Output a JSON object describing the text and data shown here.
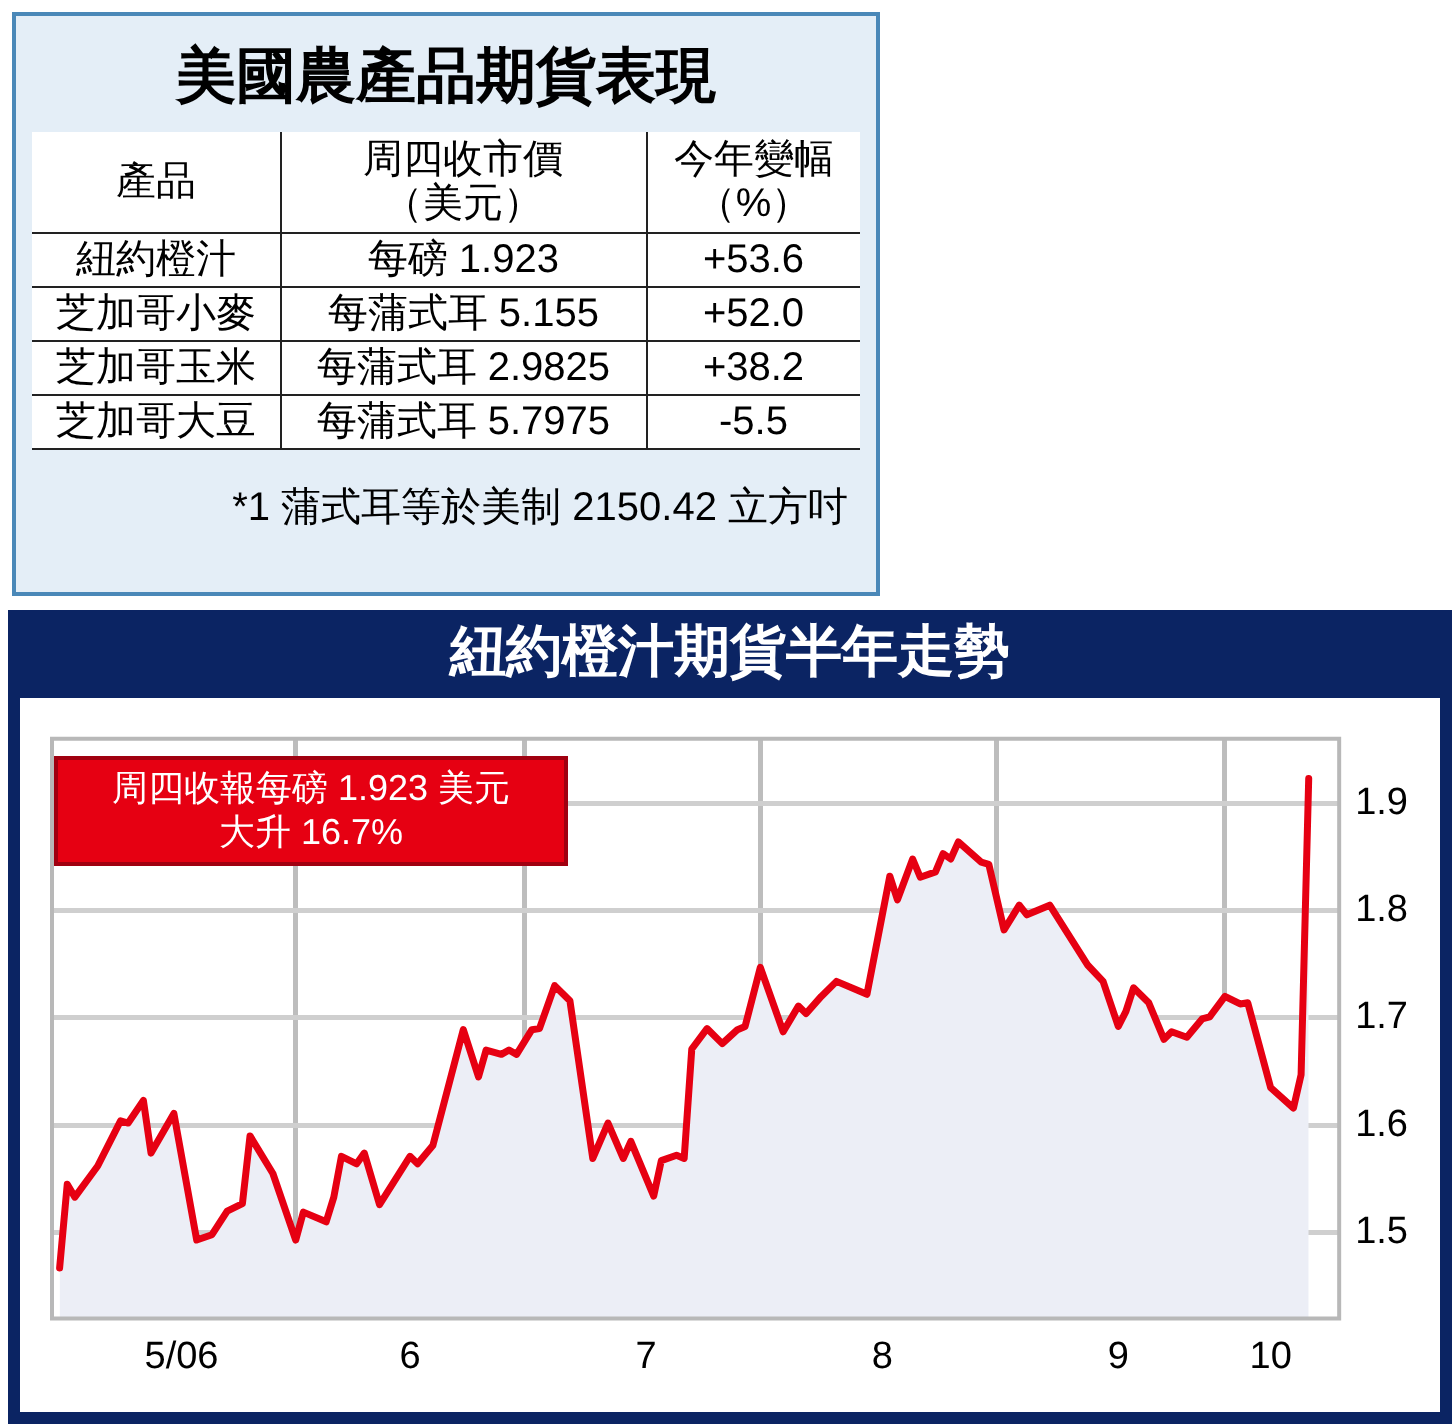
{
  "chart_data": [
    {
      "type": "other",
      "title": "美國農產品期貨表現",
      "categories": [
        "產品",
        "周四收市價（美元）",
        "今年變幅（%）"
      ],
      "cell_labels": [
        [
          "紐約橙汁",
          "每磅 1.923",
          "+53.6"
        ],
        [
          "芝加哥小麥",
          "每蒲式耳 5.155",
          "+52.0"
        ],
        [
          "芝加哥玉米",
          "每蒲式耳 2.9825",
          "+38.2"
        ],
        [
          "芝加哥大豆",
          "每蒲式耳 5.7975",
          "-5.5"
        ]
      ],
      "annotations": [
        "*1 蒲式耳等於美制 2150.42 立方吋"
      ]
    },
    {
      "type": "area",
      "title": "紐約橙汁期貨半年走勢",
      "annotations": [
        "周四收報每磅 1.923 美元",
        "大升 16.7%"
      ],
      "xlim": [
        "--04-30",
        "--10-16"
      ],
      "xticks": [
        {
          "value": "--05-17",
          "label": "5/06"
        },
        {
          "value": "--06-01",
          "label": null
        },
        {
          "value": "--06-16",
          "label": "6"
        },
        {
          "value": "--07-01",
          "label": null
        },
        {
          "value": "--07-17",
          "label": "7"
        },
        {
          "value": "--08-01",
          "label": null
        },
        {
          "value": "--08-17",
          "label": "8"
        },
        {
          "value": "--09-01",
          "label": null
        },
        {
          "value": "--09-17",
          "label": "9"
        },
        {
          "value": "--10-01",
          "label": null
        },
        {
          "value": "--10-07",
          "label": "10"
        }
      ],
      "ylim": [
        1.42,
        1.96
      ],
      "yticks": [
        1.5,
        1.6,
        1.7,
        1.8,
        1.9
      ],
      "grid": true,
      "legend": false,
      "marker": "none",
      "series": [
        {
          "color": "#e60012",
          "x": [
            "--05-01",
            "--05-02",
            "--05-03",
            "--05-06",
            "--05-09",
            "--05-10",
            "--05-12",
            "--05-13",
            "--05-16",
            "--05-19",
            "--05-21",
            "--05-23",
            "--05-25",
            "--05-26",
            "--05-29",
            "--06-01",
            "--06-02",
            "--06-05",
            "--06-06",
            "--06-07",
            "--06-09",
            "--06-10",
            "--06-12",
            "--06-16",
            "--06-17",
            "--06-19",
            "--06-23",
            "--06-25",
            "--06-26",
            "--06-28",
            "--06-29",
            "--06-30",
            "--07-02",
            "--07-03",
            "--07-05",
            "--07-07",
            "--07-10",
            "--07-12",
            "--07-14",
            "--07-15",
            "--07-18",
            "--07-19",
            "--07-21",
            "--07-22",
            "--07-23",
            "--07-25",
            "--07-27",
            "--07-29",
            "--07-30",
            "--08-01",
            "--08-04",
            "--08-06",
            "--08-07",
            "--08-09",
            "--08-11",
            "--08-15",
            "--08-18",
            "--08-19",
            "--08-21",
            "--08-22",
            "--08-24",
            "--08-25",
            "--08-26",
            "--08-27",
            "--08-30",
            "--08-31",
            "--09-02",
            "--09-04",
            "--09-05",
            "--09-08",
            "--09-13",
            "--09-15",
            "--09-17",
            "--09-18",
            "--09-19",
            "--09-21",
            "--09-23",
            "--09-24",
            "--09-26",
            "--09-28",
            "--09-29",
            "--10-01",
            "--10-03",
            "--10-04",
            "--10-07",
            "--10-10",
            "--10-11",
            "--10-12"
          ],
          "values": [
            1.467,
            1.545,
            1.533,
            1.562,
            1.604,
            1.602,
            1.623,
            1.574,
            1.611,
            1.493,
            1.498,
            1.52,
            1.527,
            1.59,
            1.555,
            1.493,
            1.519,
            1.51,
            1.533,
            1.571,
            1.564,
            1.574,
            1.526,
            1.571,
            1.564,
            1.581,
            1.689,
            1.645,
            1.67,
            1.666,
            1.67,
            1.666,
            1.689,
            1.69,
            1.73,
            1.716,
            1.569,
            1.602,
            1.569,
            1.585,
            1.534,
            1.567,
            1.572,
            1.569,
            1.671,
            1.69,
            1.676,
            1.689,
            1.692,
            1.747,
            1.687,
            1.711,
            1.704,
            1.72,
            1.734,
            1.722,
            1.832,
            1.81,
            1.848,
            1.831,
            1.836,
            1.853,
            1.848,
            1.864,
            1.845,
            1.843,
            1.782,
            1.805,
            1.796,
            1.805,
            1.749,
            1.734,
            1.692,
            1.706,
            1.728,
            1.714,
            1.68,
            1.687,
            1.682,
            1.699,
            1.701,
            1.72,
            1.713,
            1.714,
            1.635,
            1.616,
            1.647,
            1.923
          ]
        }
      ]
    }
  ]
}
